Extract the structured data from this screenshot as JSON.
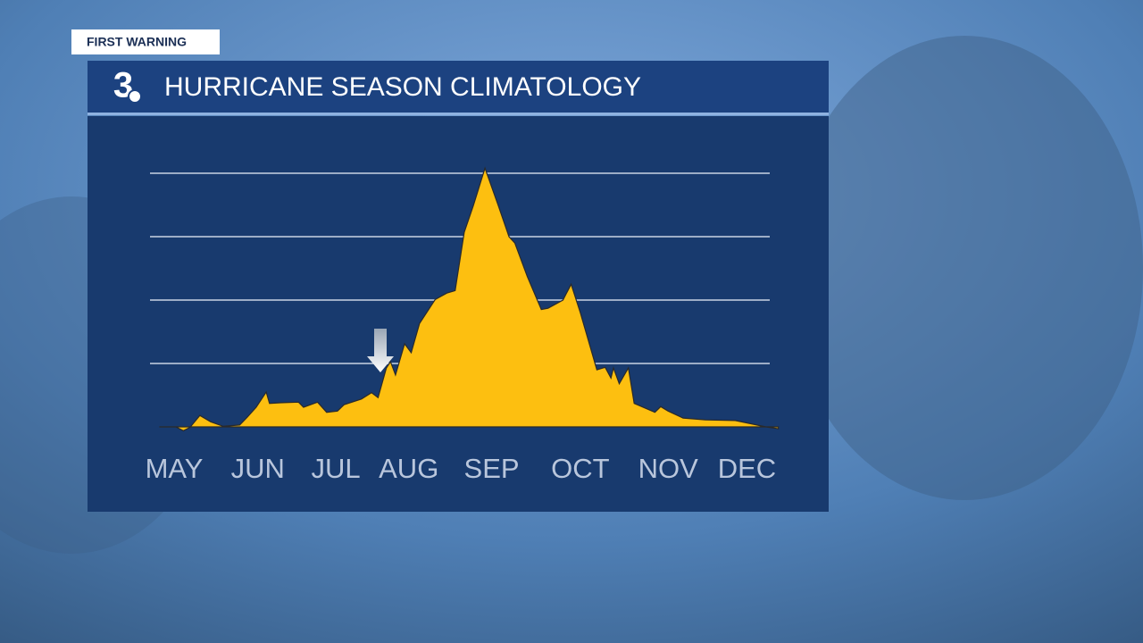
{
  "header": {
    "badge": "FIRST WARNING",
    "logo": "3"
  },
  "chart_data": {
    "type": "area",
    "title": "HURRICANE SEASON CLIMATOLOGY",
    "color": "#fdbf10",
    "grid": true,
    "xlim": [
      5,
      12.6
    ],
    "xticks": [
      {
        "value": 5.27,
        "label": "MAY"
      },
      {
        "value": 6.28,
        "label": "JUN"
      },
      {
        "value": 7.22,
        "label": "JUL"
      },
      {
        "value": 8.1,
        "label": "AUG"
      },
      {
        "value": 9.1,
        "label": "SEP"
      },
      {
        "value": 10.17,
        "label": "OCT"
      },
      {
        "value": 11.23,
        "label": "NOV"
      },
      {
        "value": 12.18,
        "label": "DEC"
      }
    ],
    "ylim": [
      -0.1,
      4.2
    ],
    "yticks": [
      1,
      2,
      3,
      4
    ],
    "x": [
      5.09,
      5.29,
      5.38,
      5.46,
      5.58,
      5.71,
      5.86,
      6.06,
      6.15,
      6.26,
      6.38,
      6.42,
      6.55,
      6.77,
      6.83,
      7.0,
      7.11,
      7.24,
      7.32,
      7.53,
      7.65,
      7.73,
      7.83,
      7.88,
      7.94,
      8.05,
      8.13,
      8.23,
      8.42,
      8.56,
      8.66,
      8.77,
      8.88,
      9.02,
      9.18,
      9.31,
      9.38,
      9.53,
      9.7,
      9.78,
      9.96,
      10.06,
      10.17,
      10.37,
      10.47,
      10.54,
      10.57,
      10.64,
      10.75,
      10.82,
      11.07,
      11.14,
      11.23,
      11.41,
      11.68,
      12.04,
      12.41,
      12.56
    ],
    "values": [
      0,
      0,
      -0.06,
      -0.01,
      0.18,
      0.08,
      0.01,
      0.03,
      0.15,
      0.31,
      0.55,
      0.37,
      0.38,
      0.39,
      0.31,
      0.39,
      0.23,
      0.25,
      0.35,
      0.44,
      0.54,
      0.46,
      0.93,
      1.03,
      0.82,
      1.31,
      1.17,
      1.63,
      2.01,
      2.11,
      2.15,
      3.07,
      3.49,
      4.08,
      3.49,
      3.0,
      2.9,
      2.37,
      1.85,
      1.87,
      2.0,
      2.25,
      1.8,
      0.9,
      0.94,
      0.77,
      0.93,
      0.68,
      0.93,
      0.37,
      0.23,
      0.32,
      0.25,
      0.14,
      0.11,
      0.1,
      0,
      -0.03
    ]
  }
}
